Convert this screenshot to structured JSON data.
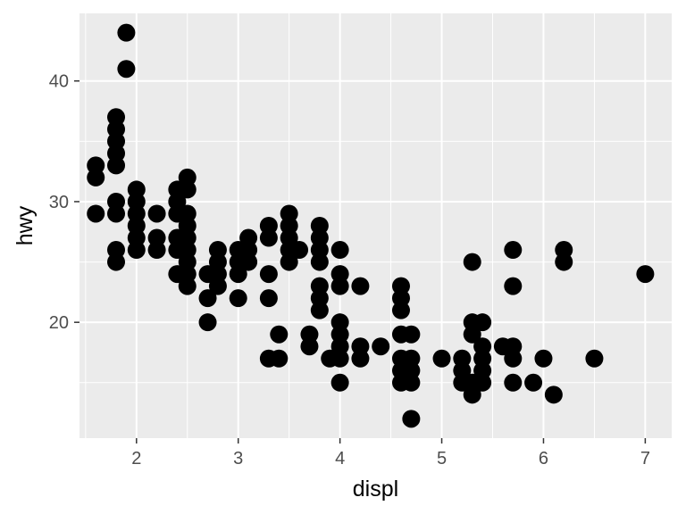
{
  "chart_data": {
    "type": "scatter",
    "title": "",
    "xlabel": "displ",
    "ylabel": "hwy",
    "xlim": [
      1.44,
      7.26
    ],
    "ylim": [
      10.4,
      45.6
    ],
    "x_ticks": [
      2,
      3,
      4,
      5,
      6,
      7
    ],
    "y_ticks": [
      20,
      30,
      40
    ],
    "x_tick_labels": [
      "2",
      "3",
      "4",
      "5",
      "6",
      "7"
    ],
    "y_tick_labels": [
      "20",
      "30",
      "40"
    ],
    "grid": true,
    "legend": "none",
    "point_color": "#000000",
    "panel_background": "#ebebeb",
    "gridline_color": "#ffffff",
    "points": [
      [
        1.6,
        33
      ],
      [
        1.6,
        32
      ],
      [
        1.6,
        29
      ],
      [
        1.8,
        37
      ],
      [
        1.8,
        36
      ],
      [
        1.8,
        35
      ],
      [
        1.8,
        34
      ],
      [
        1.8,
        33
      ],
      [
        1.8,
        30
      ],
      [
        1.8,
        29
      ],
      [
        1.8,
        26
      ],
      [
        1.8,
        25
      ],
      [
        1.9,
        44
      ],
      [
        1.9,
        41
      ],
      [
        2.0,
        31
      ],
      [
        2.0,
        30
      ],
      [
        2.0,
        29
      ],
      [
        2.0,
        28
      ],
      [
        2.0,
        27
      ],
      [
        2.0,
        26
      ],
      [
        2.2,
        29
      ],
      [
        2.2,
        27
      ],
      [
        2.2,
        26
      ],
      [
        2.4,
        31
      ],
      [
        2.4,
        30
      ],
      [
        2.4,
        29
      ],
      [
        2.4,
        27
      ],
      [
        2.4,
        26
      ],
      [
        2.4,
        24
      ],
      [
        2.5,
        32
      ],
      [
        2.5,
        31
      ],
      [
        2.5,
        29
      ],
      [
        2.5,
        28
      ],
      [
        2.5,
        27
      ],
      [
        2.5,
        26
      ],
      [
        2.5,
        25
      ],
      [
        2.5,
        24
      ],
      [
        2.5,
        23
      ],
      [
        2.7,
        24
      ],
      [
        2.7,
        22
      ],
      [
        2.7,
        20
      ],
      [
        2.8,
        26
      ],
      [
        2.8,
        25
      ],
      [
        2.8,
        24
      ],
      [
        2.8,
        23
      ],
      [
        3.0,
        26
      ],
      [
        3.0,
        25
      ],
      [
        3.0,
        24
      ],
      [
        3.0,
        22
      ],
      [
        3.1,
        27
      ],
      [
        3.1,
        26
      ],
      [
        3.1,
        25
      ],
      [
        3.3,
        28
      ],
      [
        3.3,
        27
      ],
      [
        3.3,
        24
      ],
      [
        3.3,
        22
      ],
      [
        3.3,
        17
      ],
      [
        3.4,
        19
      ],
      [
        3.4,
        17
      ],
      [
        3.5,
        29
      ],
      [
        3.5,
        28
      ],
      [
        3.5,
        27
      ],
      [
        3.5,
        26
      ],
      [
        3.5,
        25
      ],
      [
        3.6,
        26
      ],
      [
        3.7,
        19
      ],
      [
        3.7,
        18
      ],
      [
        3.8,
        28
      ],
      [
        3.8,
        27
      ],
      [
        3.8,
        26
      ],
      [
        3.8,
        25
      ],
      [
        3.8,
        23
      ],
      [
        3.8,
        22
      ],
      [
        3.8,
        21
      ],
      [
        3.9,
        17
      ],
      [
        4.0,
        26
      ],
      [
        4.0,
        24
      ],
      [
        4.0,
        23
      ],
      [
        4.0,
        20
      ],
      [
        4.0,
        19
      ],
      [
        4.0,
        18
      ],
      [
        4.0,
        17
      ],
      [
        4.0,
        15
      ],
      [
        4.2,
        23
      ],
      [
        4.2,
        18
      ],
      [
        4.2,
        17
      ],
      [
        4.4,
        18
      ],
      [
        4.6,
        23
      ],
      [
        4.6,
        22
      ],
      [
        4.6,
        21
      ],
      [
        4.6,
        19
      ],
      [
        4.6,
        17
      ],
      [
        4.6,
        16
      ],
      [
        4.6,
        15
      ],
      [
        4.7,
        19
      ],
      [
        4.7,
        17
      ],
      [
        4.7,
        16
      ],
      [
        4.7,
        15
      ],
      [
        4.7,
        12
      ],
      [
        5.0,
        17
      ],
      [
        5.2,
        17
      ],
      [
        5.2,
        16
      ],
      [
        5.2,
        15
      ],
      [
        5.3,
        25
      ],
      [
        5.3,
        20
      ],
      [
        5.3,
        19
      ],
      [
        5.3,
        15
      ],
      [
        5.3,
        14
      ],
      [
        5.4,
        20
      ],
      [
        5.4,
        18
      ],
      [
        5.4,
        17
      ],
      [
        5.4,
        16
      ],
      [
        5.4,
        15
      ],
      [
        5.6,
        18
      ],
      [
        5.7,
        26
      ],
      [
        5.7,
        23
      ],
      [
        5.7,
        18
      ],
      [
        5.7,
        17
      ],
      [
        5.7,
        15
      ],
      [
        5.9,
        15
      ],
      [
        6.0,
        17
      ],
      [
        6.1,
        14
      ],
      [
        6.2,
        26
      ],
      [
        6.2,
        25
      ],
      [
        6.5,
        17
      ],
      [
        7.0,
        24
      ]
    ]
  }
}
